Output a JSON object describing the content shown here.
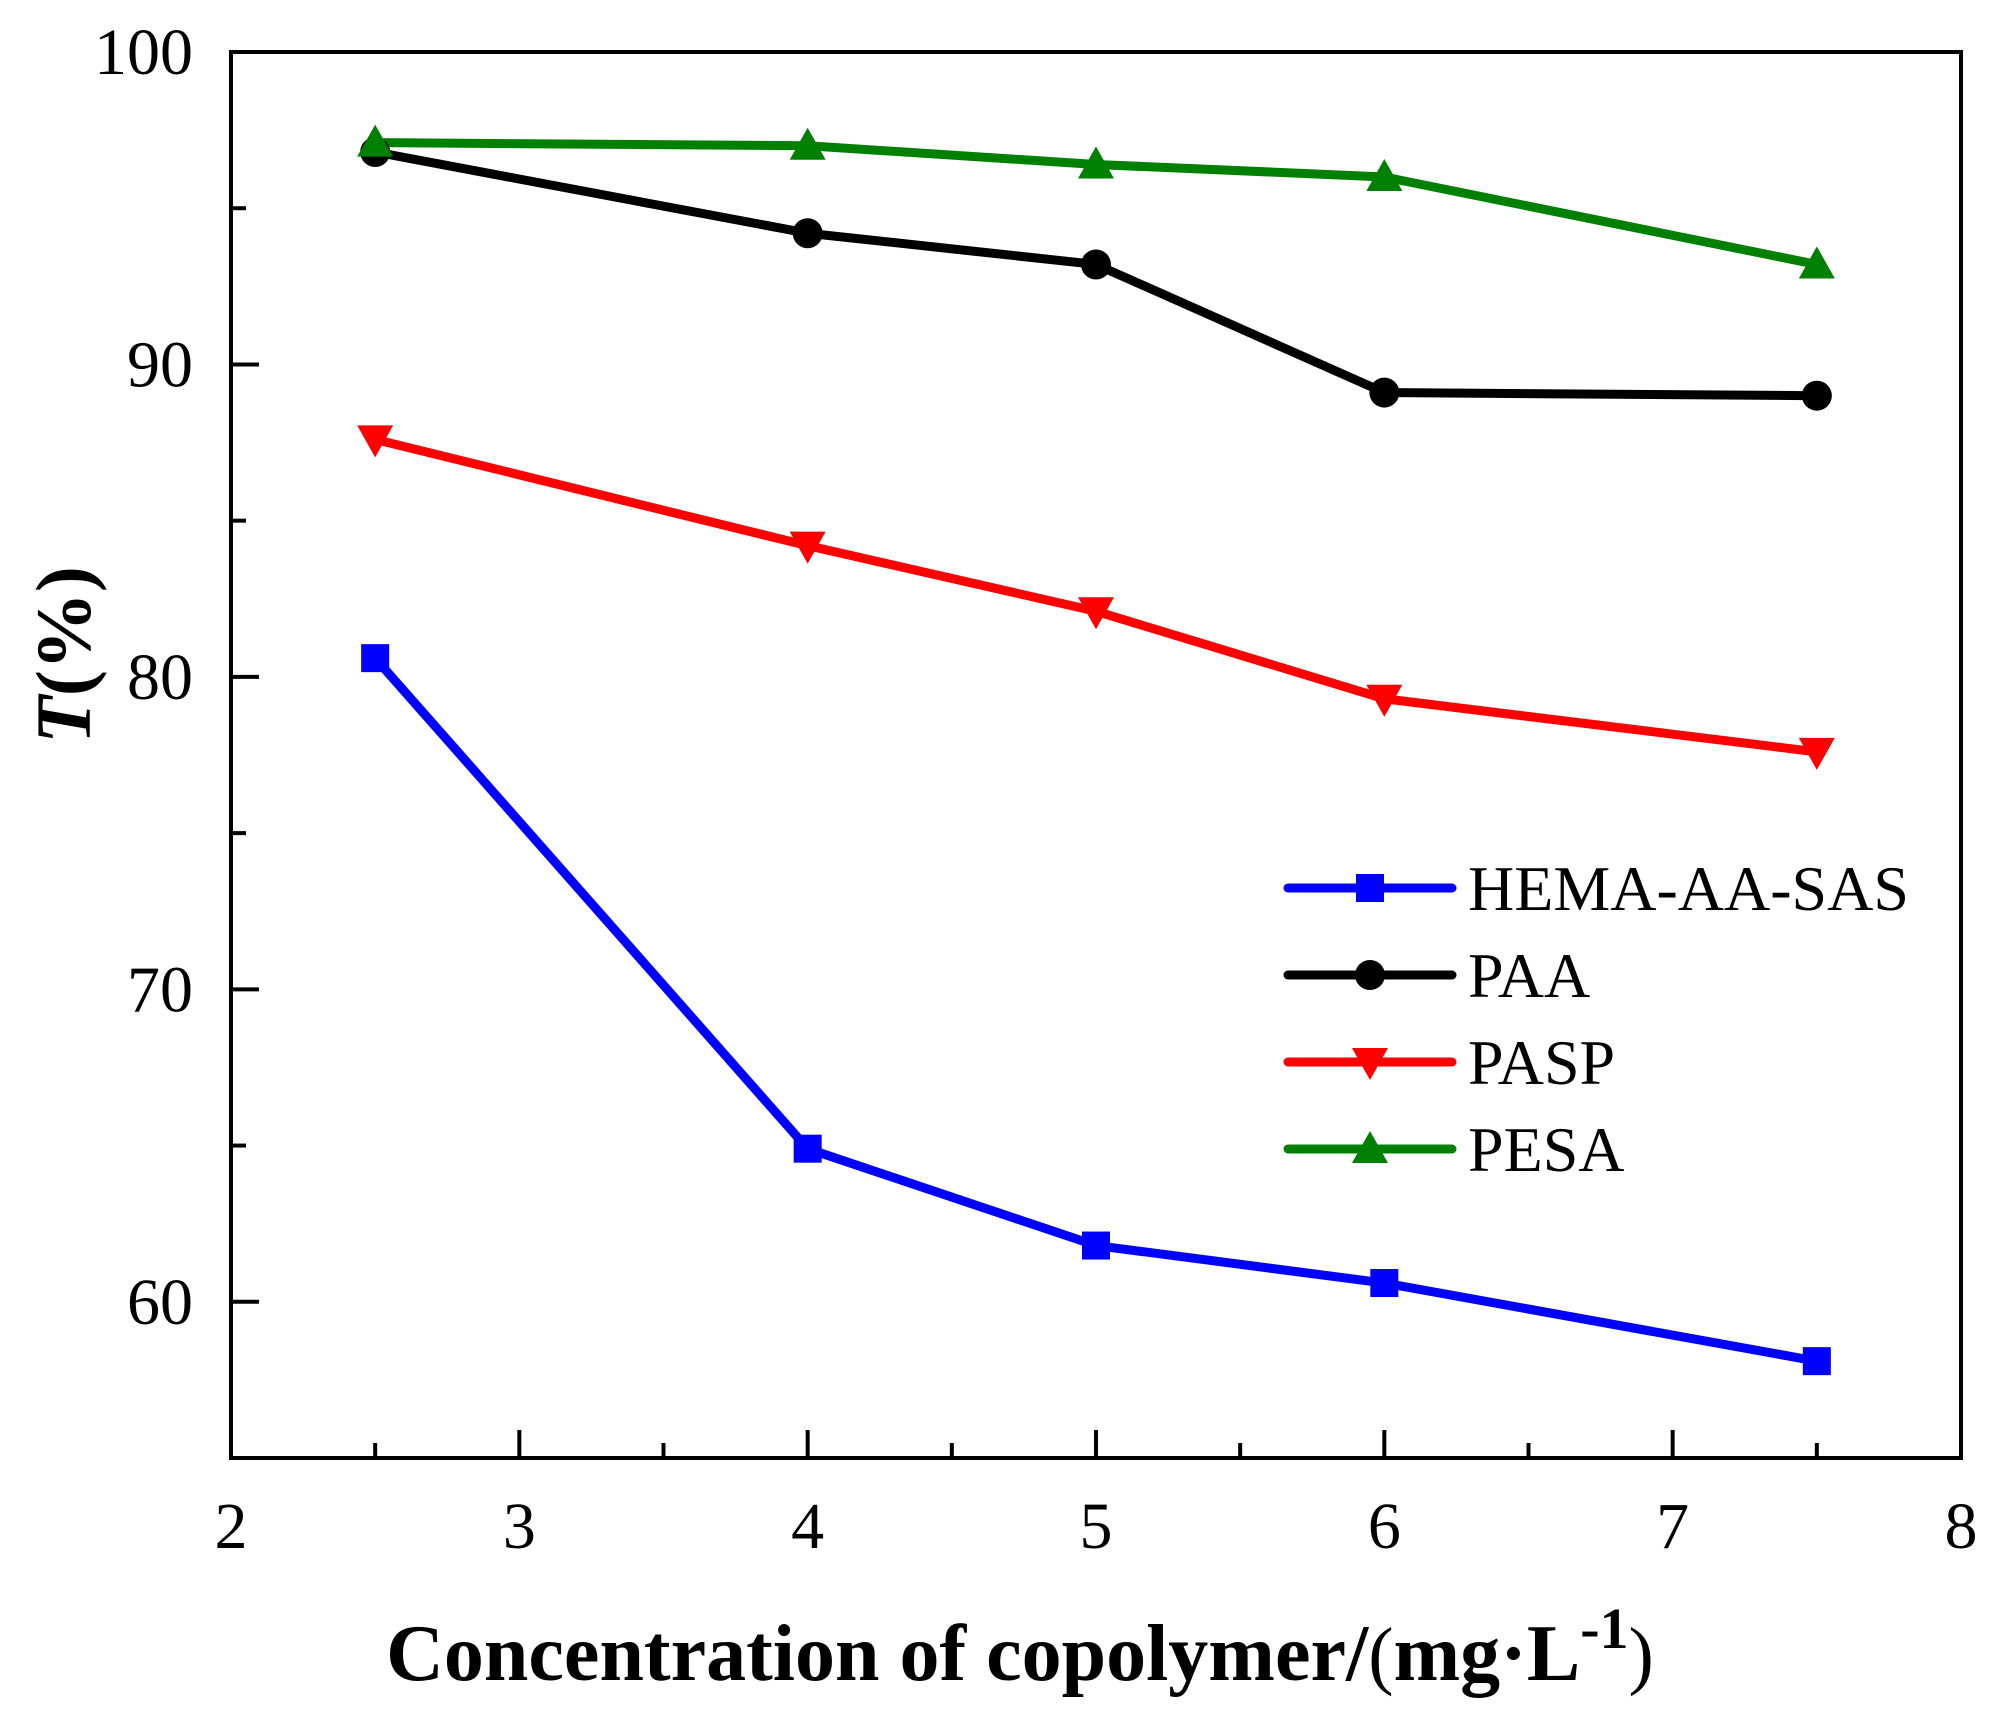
{
  "chart_data": {
    "type": "line",
    "title": "",
    "xlabel": "Concentration of copolymer/",
    "xlabel_unit_open": "(",
    "xlabel_unit": "mg·L",
    "xlabel_unit_sup": "-1",
    "xlabel_unit_close": ")",
    "ylabel_main": "T",
    "ylabel_rest": "(%)",
    "xlim": [
      2,
      8
    ],
    "ylim": [
      55,
      100
    ],
    "xticks": [
      2,
      3,
      4,
      5,
      6,
      7,
      8
    ],
    "yticks": [
      60,
      70,
      80,
      90,
      100
    ],
    "x": [
      2.5,
      4,
      5,
      6,
      7.5
    ],
    "legend_position": "center-right",
    "series": [
      {
        "name": "HEMA-AA-SAS",
        "color": "#0000ff",
        "marker": "square",
        "values": [
          80.6,
          64.9,
          61.8,
          60.6,
          58.1
        ]
      },
      {
        "name": "PAA",
        "color": "#000000",
        "marker": "circle",
        "values": [
          96.8,
          94.2,
          93.2,
          89.1,
          89.0
        ]
      },
      {
        "name": "PASP",
        "color": "#ff0000",
        "marker": "triangle-down",
        "values": [
          87.6,
          84.2,
          82.1,
          79.3,
          77.6
        ]
      },
      {
        "name": "PESA",
        "color": "#008000",
        "marker": "triangle-up",
        "values": [
          97.1,
          97.0,
          96.4,
          96.0,
          93.2
        ]
      }
    ]
  }
}
